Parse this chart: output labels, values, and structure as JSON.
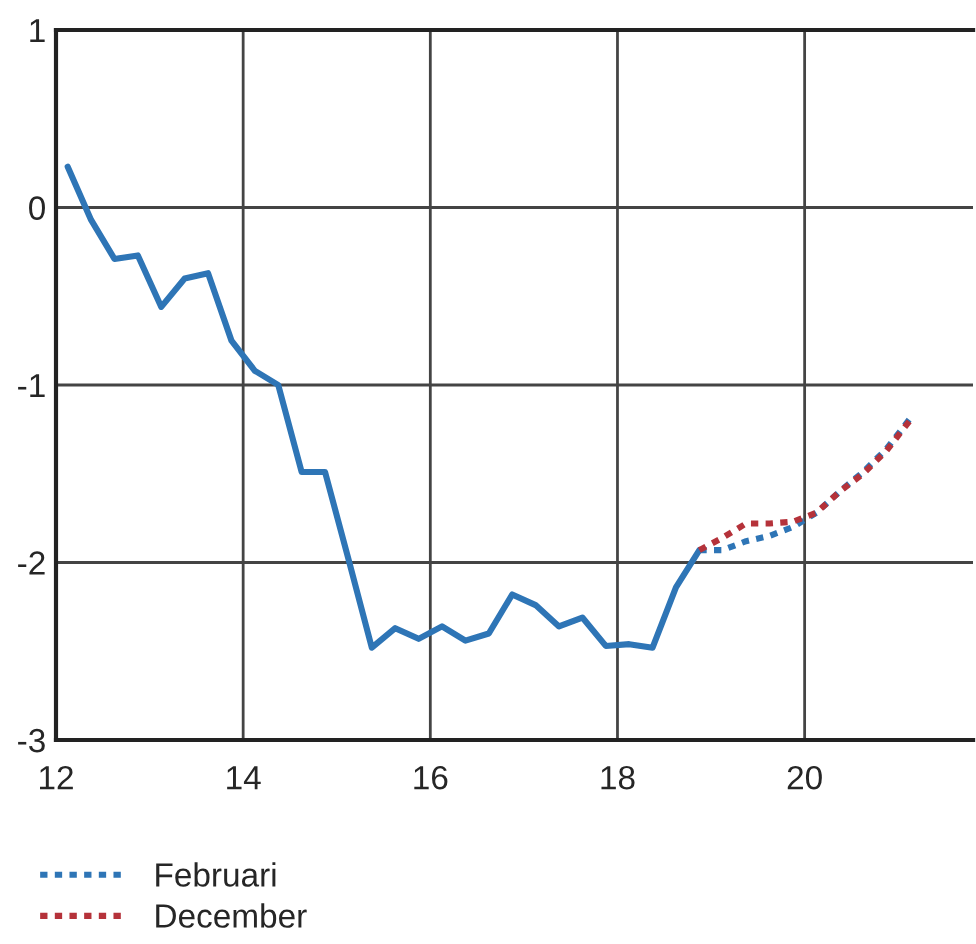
{
  "chart_data": {
    "type": "line",
    "series": [
      {
        "color": "#2e75b6",
        "line_style": "solid",
        "x": [
          12.125,
          12.375,
          12.625,
          12.875,
          13.125,
          13.375,
          13.625,
          13.875,
          14.125,
          14.375,
          14.625,
          14.875,
          15.125,
          15.375,
          15.625,
          15.875,
          16.125,
          16.375,
          16.625,
          16.875,
          17.125,
          17.375,
          17.625,
          17.875,
          18.125,
          18.375,
          18.625,
          18.875
        ],
        "values": [
          0.23,
          -0.07,
          -0.29,
          -0.27,
          -0.56,
          -0.4,
          -0.37,
          -0.75,
          -0.92,
          -1.0,
          -1.49,
          -1.49,
          -1.98,
          -2.48,
          -2.37,
          -2.43,
          -2.36,
          -2.44,
          -2.4,
          -2.18,
          -2.24,
          -2.36,
          -2.31,
          -2.47,
          -2.46,
          -2.48,
          -2.14,
          -1.93
        ]
      },
      {
        "name": "Februari",
        "color": "#2e75b6",
        "line_style": "dotted",
        "x": [
          18.875,
          19.125,
          19.375,
          19.625,
          19.875,
          20.125,
          20.375,
          20.625,
          20.875,
          21.125
        ],
        "values": [
          -1.93,
          -1.93,
          -1.88,
          -1.85,
          -1.8,
          -1.72,
          -1.6,
          -1.49,
          -1.36,
          -1.19
        ]
      },
      {
        "name": "December",
        "color": "#b5323a",
        "line_style": "dotted",
        "x": [
          18.875,
          19.125,
          19.375,
          19.625,
          19.875,
          20.125,
          20.375,
          20.625,
          20.875,
          21.125
        ],
        "values": [
          -1.93,
          -1.86,
          -1.78,
          -1.78,
          -1.77,
          -1.72,
          -1.6,
          -1.5,
          -1.37,
          -1.2
        ]
      }
    ],
    "xlim": [
      12,
      21.8
    ],
    "xticks": [
      12,
      14,
      16,
      18,
      20
    ],
    "ylim": [
      -3,
      1
    ],
    "yticks": [
      {
        "value": -3,
        "label": "-3"
      },
      {
        "value": -2,
        "label": "-2"
      },
      {
        "value": -1,
        "label": "-1"
      },
      0,
      1
    ],
    "grid": true,
    "legend": "bottom left",
    "marker": "none"
  }
}
